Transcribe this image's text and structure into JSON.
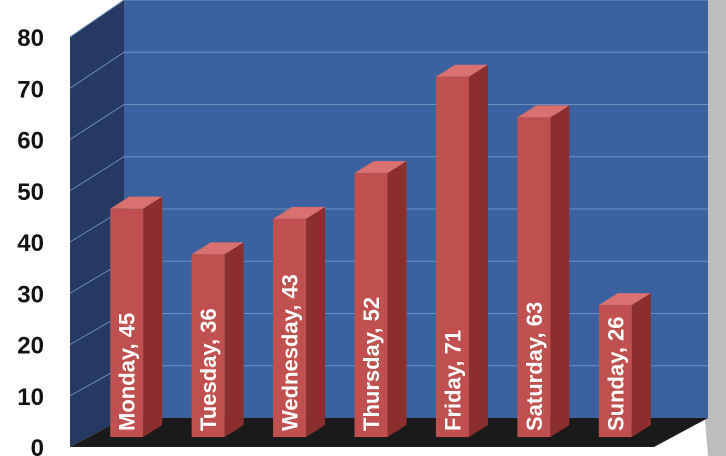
{
  "chart_data": {
    "type": "bar",
    "categories": [
      "Monday",
      "Tuesday",
      "Wednesday",
      "Thursday",
      "Friday",
      "Saturday",
      "Sunday"
    ],
    "values": [
      45,
      36,
      43,
      52,
      71,
      63,
      26
    ],
    "data_labels": [
      "Monday, 45",
      "Tuesday, 36",
      "Wednesday, 43",
      "Thursday, 52",
      "Friday, 71",
      "Saturday, 63",
      "Sunday, 26"
    ],
    "ylim": [
      0,
      80
    ],
    "yticks": [
      "0",
      "10",
      "20",
      "30",
      "40",
      "50",
      "60",
      "70",
      "80"
    ],
    "grid": true,
    "style": "3d",
    "colors": {
      "wall": "#3a62a0",
      "side_wall": "#243a63",
      "floor": "#1a1a1a",
      "gridline": "#6f8fc0",
      "bar_front": "#c0504d",
      "bar_side": "#8b2f2c",
      "bar_top": "#d9716e",
      "shadow": "#bdbdbd"
    }
  }
}
